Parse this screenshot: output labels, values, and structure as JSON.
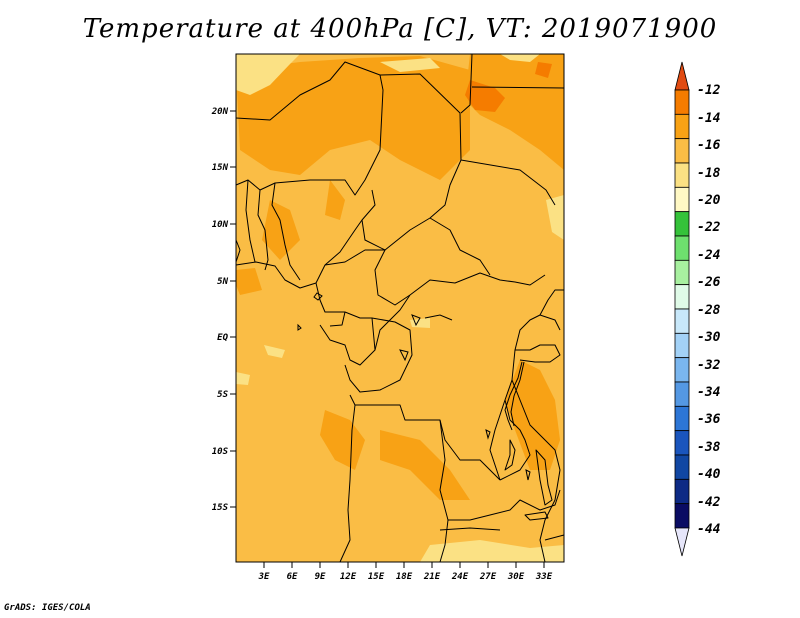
{
  "title": "Temperature at 400hPa [C], VT: 2019071900",
  "credit": "GrADS: IGES/COLA",
  "map": {
    "lat_labels": [
      "20N",
      "15N",
      "10N",
      "5N",
      "EQ",
      "5S",
      "10S",
      "15S"
    ],
    "lon_labels": [
      "3E",
      "6E",
      "9E",
      "12E",
      "15E",
      "18E",
      "21E",
      "24E",
      "27E",
      "30E",
      "33E"
    ],
    "fill_colors": {
      "base": "#fabd45",
      "warm": "#f8a215",
      "warmer": "#f57c00",
      "cool": "#fbe184"
    }
  },
  "colorbar": {
    "labels": [
      "-12",
      "-14",
      "-16",
      "-18",
      "-20",
      "-22",
      "-24",
      "-26",
      "-28",
      "-30",
      "-32",
      "-34",
      "-36",
      "-38",
      "-40",
      "-42",
      "-44"
    ],
    "colors_top_to_bottom": [
      "#e14b12",
      "#f57c00",
      "#f8a215",
      "#fabd45",
      "#fbe184",
      "#fff8c4",
      "#35c23a",
      "#6ee06e",
      "#a8f0a0",
      "#e0fbe8",
      "#c8e8fa",
      "#a3d2f7",
      "#7ab6ef",
      "#5498e3",
      "#2d76d6",
      "#1a55bd",
      "#1147a3",
      "#0d2a85",
      "#0a0c63",
      "#e6e6fa"
    ]
  }
}
